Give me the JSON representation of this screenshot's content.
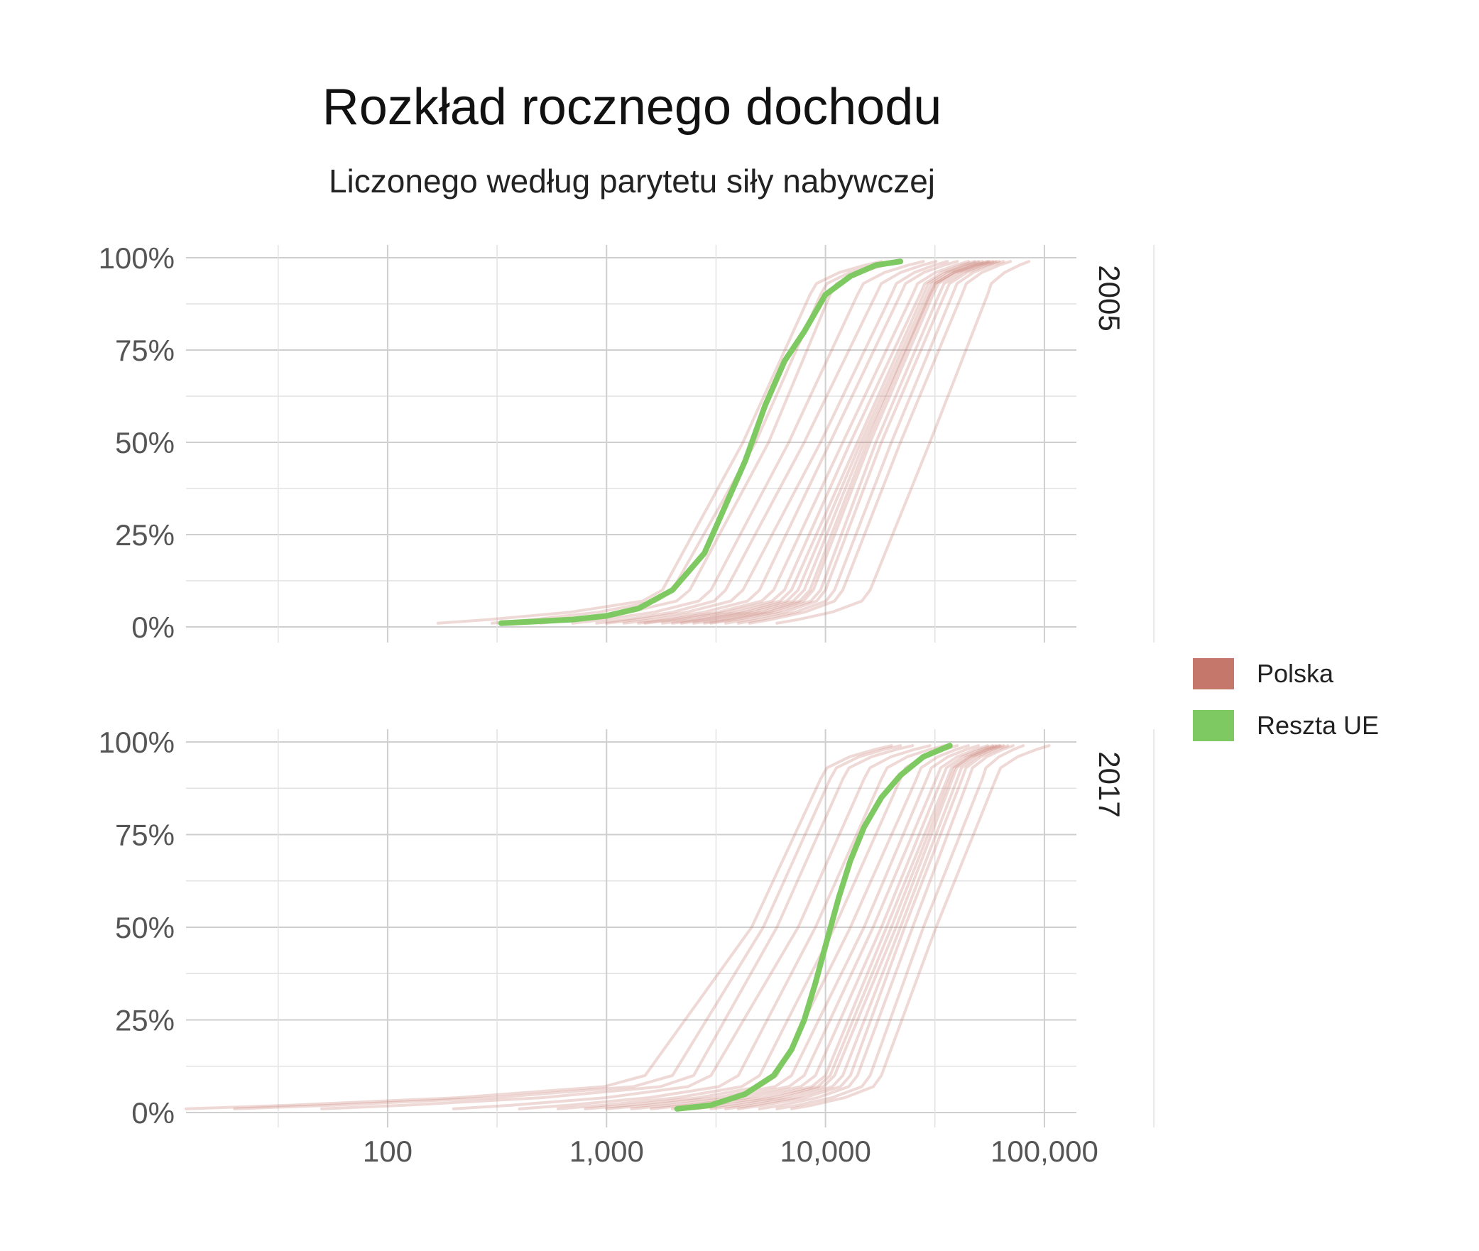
{
  "title": "Rozkład rocznego dochodu",
  "subtitle": "Liczonego według parytetu siły nabywczej",
  "legend": {
    "items": [
      {
        "label": "Polska",
        "color": "#c4776a"
      },
      {
        "label": "Reszta UE",
        "color": "#7ec962"
      }
    ]
  },
  "chart_data": {
    "type": "line",
    "x_scale": "log",
    "xlim": [
      12,
      140000
    ],
    "ylim": [
      0,
      100
    ],
    "x_ticks": [
      100,
      1000,
      10000,
      100000
    ],
    "x_tick_labels": [
      "100",
      "1,000",
      "10,000",
      "100,000"
    ],
    "y_ticks": [
      0,
      25,
      50,
      75,
      100
    ],
    "y_tick_labels": [
      "0%",
      "25%",
      "50%",
      "75%",
      "100%"
    ],
    "grid": true,
    "legend_position": "right",
    "panels": [
      {
        "label": "2005",
        "highlight_series": {
          "name": "Reszta UE",
          "color": "#7ec962",
          "points": [
            [
              330,
              1
            ],
            [
              700,
              2
            ],
            [
              1000,
              3
            ],
            [
              1400,
              5
            ],
            [
              2000,
              10
            ],
            [
              2800,
              20
            ],
            [
              3500,
              33
            ],
            [
              4300,
              45
            ],
            [
              5300,
              60
            ],
            [
              6500,
              72
            ],
            [
              8000,
              80
            ],
            [
              10000,
              90
            ],
            [
              13000,
              95
            ],
            [
              17000,
              98
            ],
            [
              22000,
              99
            ]
          ]
        },
        "group_series": {
          "name": "Polska",
          "color": "#c4776a",
          "curves": [
            {
              "min": 170,
              "p10": 1800,
              "p50": 4200,
              "p90": 8500,
              "max": 18000
            },
            {
              "min": 300,
              "p10": 2000,
              "p50": 4800,
              "p90": 9500,
              "max": 20000
            },
            {
              "min": 500,
              "p10": 2400,
              "p50": 5500,
              "p90": 10500,
              "max": 22000
            },
            {
              "min": 700,
              "p10": 3000,
              "p50": 6800,
              "p90": 14000,
              "max": 28000
            },
            {
              "min": 900,
              "p10": 3500,
              "p50": 8000,
              "p90": 17000,
              "max": 32000
            },
            {
              "min": 1000,
              "p10": 4200,
              "p50": 9500,
              "p90": 20000,
              "max": 36000
            },
            {
              "min": 1200,
              "p10": 5000,
              "p50": 10500,
              "p90": 22000,
              "max": 40000
            },
            {
              "min": 1400,
              "p10": 5800,
              "p50": 12000,
              "p90": 25000,
              "max": 45000
            },
            {
              "min": 1500,
              "p10": 6500,
              "p50": 13000,
              "p90": 27000,
              "max": 48000
            },
            {
              "min": 1800,
              "p10": 7000,
              "p50": 14000,
              "p90": 28000,
              "max": 50000
            },
            {
              "min": 2000,
              "p10": 7500,
              "p50": 14500,
              "p90": 29000,
              "max": 52000
            },
            {
              "min": 2200,
              "p10": 8000,
              "p50": 15000,
              "p90": 30000,
              "max": 55000
            },
            {
              "min": 2500,
              "p10": 8500,
              "p50": 15500,
              "p90": 30000,
              "max": 56000
            },
            {
              "min": 2800,
              "p10": 8800,
              "p50": 16000,
              "p90": 31000,
              "max": 58000
            },
            {
              "min": 3000,
              "p10": 9500,
              "p50": 17000,
              "p90": 33000,
              "max": 60000
            },
            {
              "min": 3500,
              "p10": 10000,
              "p50": 18000,
              "p90": 35000,
              "max": 62000
            },
            {
              "min": 4000,
              "p10": 11000,
              "p50": 20000,
              "p90": 38000,
              "max": 65000
            },
            {
              "min": 4500,
              "p10": 12000,
              "p50": 22000,
              "p90": 42000,
              "max": 70000
            },
            {
              "min": 6000,
              "p10": 16000,
              "p50": 30000,
              "p90": 55000,
              "max": 85000
            }
          ]
        }
      },
      {
        "label": "2017",
        "highlight_series": {
          "name": "Reszta UE",
          "color": "#7ec962",
          "points": [
            [
              2100,
              1
            ],
            [
              3000,
              2
            ],
            [
              4300,
              5
            ],
            [
              5800,
              10
            ],
            [
              7000,
              17
            ],
            [
              8000,
              25
            ],
            [
              9000,
              35
            ],
            [
              10000,
              45
            ],
            [
              11500,
              58
            ],
            [
              13000,
              68
            ],
            [
              15000,
              77
            ],
            [
              18000,
              85
            ],
            [
              22000,
              91
            ],
            [
              28000,
              96
            ],
            [
              37000,
              99
            ]
          ]
        },
        "group_series": {
          "name": "Polska",
          "color": "#c4776a",
          "curves": [
            {
              "min": 12,
              "p10": 1500,
              "p50": 4600,
              "p90": 9500,
              "max": 20000
            },
            {
              "min": 20,
              "p10": 2000,
              "p50": 5200,
              "p90": 10500,
              "max": 22000
            },
            {
              "min": 50,
              "p10": 2500,
              "p50": 6000,
              "p90": 12000,
              "max": 25000
            },
            {
              "min": 200,
              "p10": 3000,
              "p50": 7500,
              "p90": 15000,
              "max": 30000
            },
            {
              "min": 400,
              "p10": 4000,
              "p50": 9000,
              "p90": 18000,
              "max": 35000
            },
            {
              "min": 600,
              "p10": 5000,
              "p50": 11000,
              "p90": 22000,
              "max": 40000
            },
            {
              "min": 800,
              "p10": 6000,
              "p50": 13000,
              "p90": 26000,
              "max": 45000
            },
            {
              "min": 1000,
              "p10": 7000,
              "p50": 15000,
              "p90": 29000,
              "max": 50000
            },
            {
              "min": 1300,
              "p10": 8000,
              "p50": 16500,
              "p90": 32000,
              "max": 55000
            },
            {
              "min": 1600,
              "p10": 9000,
              "p50": 18000,
              "p90": 34000,
              "max": 58000
            },
            {
              "min": 2000,
              "p10": 10000,
              "p50": 19000,
              "p90": 36000,
              "max": 60000
            },
            {
              "min": 2500,
              "p10": 10500,
              "p50": 20000,
              "p90": 37000,
              "max": 62000
            },
            {
              "min": 3000,
              "p10": 11000,
              "p50": 21000,
              "p90": 38000,
              "max": 63000
            },
            {
              "min": 3500,
              "p10": 12000,
              "p50": 22000,
              "p90": 40000,
              "max": 65000
            },
            {
              "min": 4000,
              "p10": 13000,
              "p50": 23000,
              "p90": 42000,
              "max": 68000
            },
            {
              "min": 5000,
              "p10": 14000,
              "p50": 25000,
              "p90": 45000,
              "max": 72000
            },
            {
              "min": 6000,
              "p10": 16000,
              "p50": 28000,
              "p90": 52000,
              "max": 80000
            },
            {
              "min": 7000,
              "p10": 18000,
              "p50": 32000,
              "p90": 60000,
              "max": 105000
            }
          ]
        }
      }
    ]
  }
}
